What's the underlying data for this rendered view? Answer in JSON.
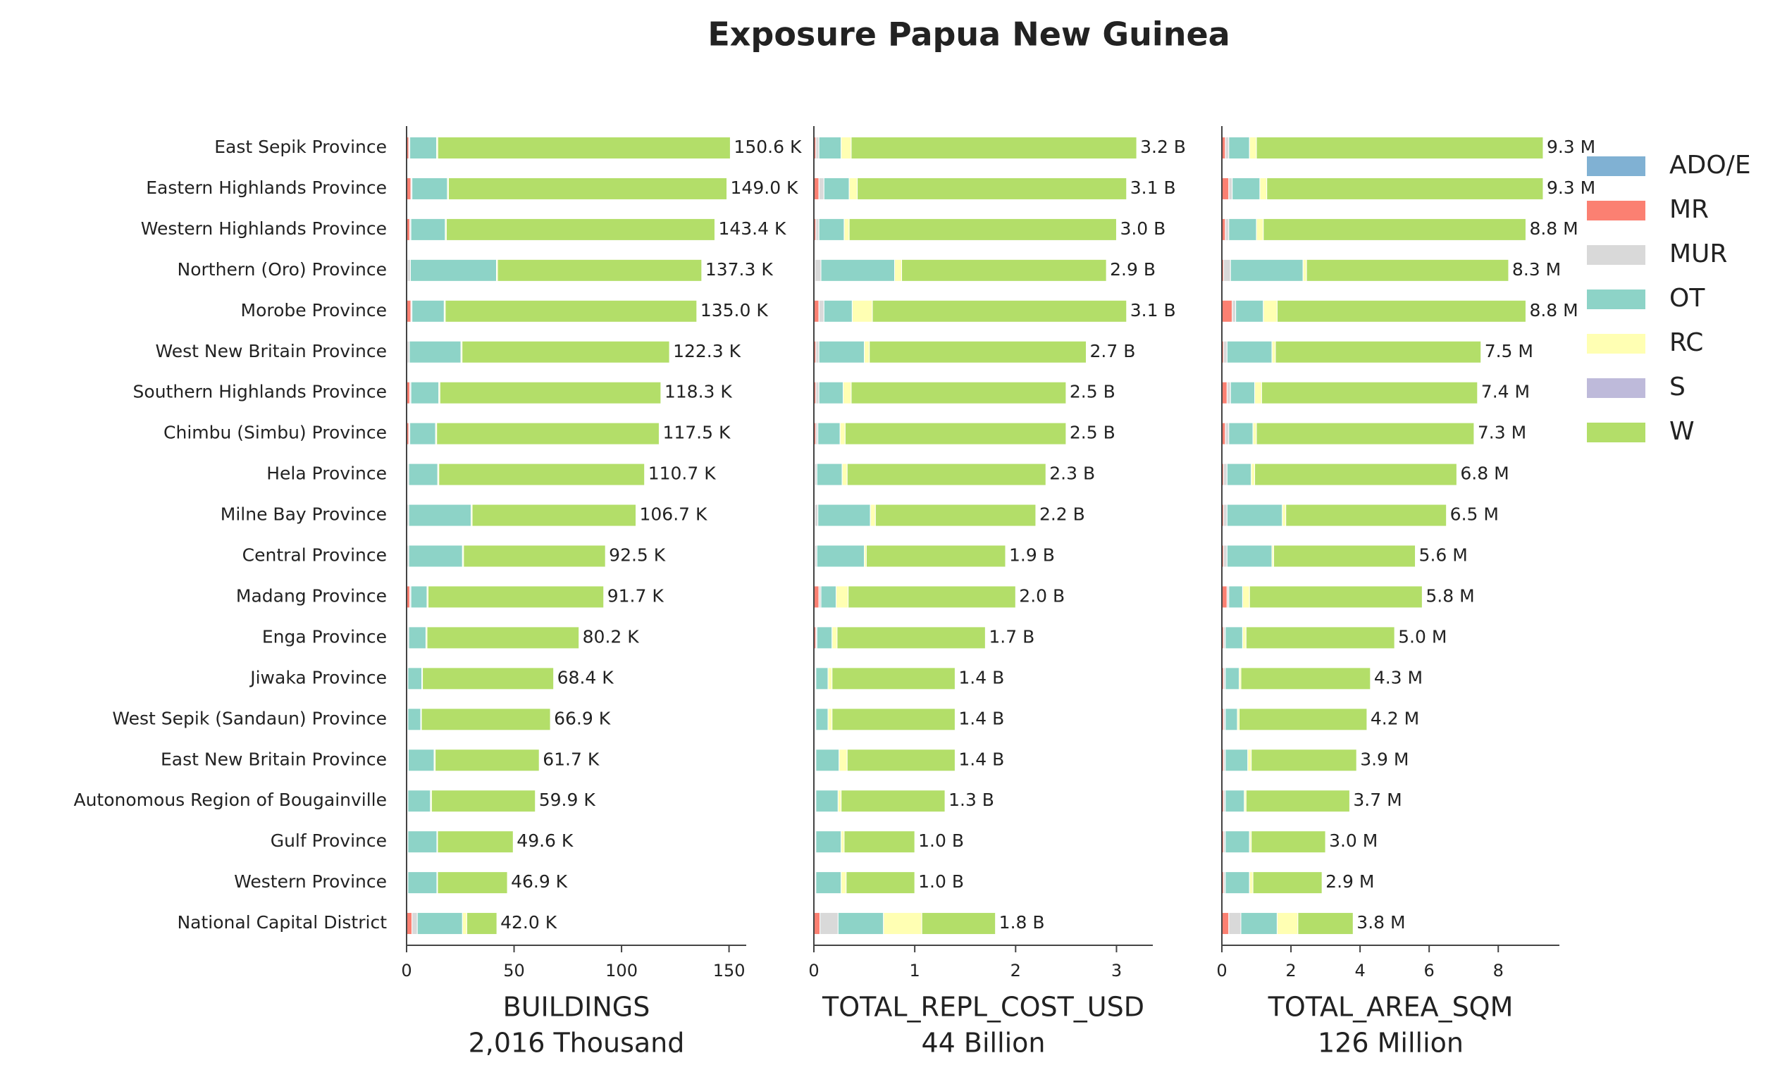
{
  "title": "Exposure Papua New Guinea",
  "chart_data": [
    {
      "type": "bar",
      "categories": [
        "East Sepik Province",
        "Eastern Highlands Province",
        "Western Highlands Province",
        "Northern (Oro) Province",
        "Morobe Province",
        "West New Britain Province",
        "Southern Highlands Province",
        "Chimbu (Simbu) Province",
        "Hela Province",
        "Milne Bay Province",
        "Central Province",
        "Madang Province",
        "Enga Province",
        "Jiwaka Province",
        "West Sepik (Sandaun) Province",
        "East New Britain Province",
        "Autonomous Region of Bougainville",
        "Gulf Province",
        "Western Province",
        "National Capital District"
      ],
      "series": [
        {
          "name": "ADO/E",
          "color": "#80b1d3",
          "values": [
            0,
            0,
            0,
            0,
            0,
            0,
            0,
            0,
            0,
            0,
            0,
            0,
            0,
            0,
            0,
            0,
            0,
            0,
            0,
            0
          ]
        },
        {
          "name": "MR",
          "color": "#fb8072",
          "values": [
            1.0,
            2.0,
            1.5,
            0.3,
            2.0,
            0.3,
            1.5,
            1.0,
            0.5,
            0.3,
            0.3,
            1.5,
            0.5,
            0.3,
            0.3,
            0.3,
            0.3,
            0.3,
            0.3,
            2.5
          ]
        },
        {
          "name": "MUR",
          "color": "#d9d9d9",
          "values": [
            0.5,
            0.5,
            0.5,
            1.5,
            0.5,
            1.0,
            0.5,
            0.5,
            0.5,
            0.7,
            0.7,
            0.5,
            0.5,
            0.3,
            0.3,
            0.5,
            0.3,
            0.3,
            0.3,
            2.5
          ]
        },
        {
          "name": "OT",
          "color": "#8dd3c7",
          "values": [
            12.5,
            16.5,
            16.0,
            40.0,
            15.0,
            24.0,
            13.0,
            12.0,
            13.5,
            29.0,
            25.0,
            7.5,
            8.0,
            6.5,
            6.0,
            12.0,
            10.5,
            13.5,
            13.5,
            21.0
          ]
        },
        {
          "name": "RC",
          "color": "#ffffb3",
          "values": [
            0.5,
            0.5,
            0.5,
            0.5,
            0.5,
            0.5,
            0.5,
            0.5,
            0.5,
            0.5,
            0.5,
            0.5,
            0.5,
            0.3,
            0.3,
            0.5,
            0.5,
            0.3,
            0.3,
            2.0
          ]
        },
        {
          "name": "S",
          "color": "#bebada",
          "values": [
            0,
            0,
            0,
            0,
            0,
            0,
            0,
            0,
            0,
            0,
            0,
            0,
            0,
            0,
            0,
            0,
            0,
            0,
            0,
            0
          ]
        },
        {
          "name": "W",
          "color": "#b3de69",
          "values": [
            136.1,
            129.5,
            124.9,
            95.0,
            117.0,
            96.5,
            102.8,
            103.5,
            95.7,
            76.2,
            66.0,
            81.7,
            70.7,
            61.0,
            60.0,
            48.4,
            48.3,
            35.2,
            32.5,
            14.0
          ]
        }
      ],
      "totals": [
        150.6,
        149.0,
        143.4,
        137.3,
        135.0,
        122.3,
        118.3,
        117.5,
        110.7,
        106.7,
        92.5,
        91.7,
        80.2,
        68.4,
        66.9,
        61.7,
        59.9,
        49.6,
        46.9,
        42.0
      ],
      "total_labels": [
        "150.6 K",
        "149.0 K",
        "143.4 K",
        "137.3 K",
        "135.0 K",
        "122.3 K",
        "118.3 K",
        "117.5 K",
        "110.7 K",
        "106.7 K",
        "92.5 K",
        "91.7 K",
        "80.2 K",
        "68.4 K",
        "66.9 K",
        "61.7 K",
        "59.9 K",
        "49.6 K",
        "46.9 K",
        "42.0 K"
      ],
      "xlim": [
        0,
        158
      ],
      "xticks": [
        0,
        50,
        100,
        150
      ],
      "xlabel": "BUILDINGS",
      "xlabel_sub": "2,016 Thousand"
    },
    {
      "type": "bar",
      "series": [
        {
          "values": [
            0,
            0,
            0,
            0,
            0,
            0,
            0,
            0,
            0,
            0,
            0,
            0,
            0,
            0,
            0,
            0,
            0,
            0,
            0,
            0
          ]
        },
        {
          "values": [
            0.02,
            0.05,
            0.02,
            0.01,
            0.05,
            0.02,
            0.02,
            0.02,
            0.01,
            0.01,
            0.01,
            0.05,
            0.02,
            0.01,
            0.01,
            0.01,
            0.01,
            0.01,
            0.01,
            0.06
          ]
        },
        {
          "values": [
            0.03,
            0.05,
            0.03,
            0.06,
            0.05,
            0.03,
            0.03,
            0.02,
            0.02,
            0.03,
            0.02,
            0.02,
            0.01,
            0.01,
            0.01,
            0.01,
            0.01,
            0.01,
            0.01,
            0.18
          ]
        },
        {
          "values": [
            0.22,
            0.25,
            0.25,
            0.73,
            0.28,
            0.45,
            0.24,
            0.22,
            0.25,
            0.52,
            0.47,
            0.15,
            0.15,
            0.12,
            0.12,
            0.23,
            0.22,
            0.25,
            0.25,
            0.45
          ]
        },
        {
          "values": [
            0.1,
            0.08,
            0.05,
            0.07,
            0.2,
            0.05,
            0.08,
            0.05,
            0.05,
            0.05,
            0.02,
            0.12,
            0.05,
            0.04,
            0.04,
            0.08,
            0.03,
            0.03,
            0.05,
            0.38
          ]
        },
        {
          "values": [
            0,
            0,
            0,
            0,
            0,
            0,
            0,
            0,
            0,
            0,
            0,
            0,
            0,
            0,
            0,
            0,
            0,
            0,
            0,
            0
          ]
        },
        {
          "values": [
            2.83,
            2.67,
            2.65,
            2.03,
            2.52,
            2.15,
            2.13,
            2.19,
            1.97,
            1.59,
            1.38,
            1.66,
            1.47,
            1.22,
            1.22,
            1.07,
            1.03,
            0.7,
            0.68,
            0.73
          ]
        }
      ],
      "totals": [
        3.2,
        3.1,
        3.0,
        2.9,
        3.1,
        2.7,
        2.5,
        2.5,
        2.3,
        2.2,
        1.9,
        2.0,
        1.7,
        1.4,
        1.4,
        1.4,
        1.3,
        1.0,
        1.0,
        1.8
      ],
      "total_labels": [
        "3.2 B",
        "3.1 B",
        "3.0 B",
        "2.9 B",
        "3.1 B",
        "2.7 B",
        "2.5 B",
        "2.5 B",
        "2.3 B",
        "2.2 B",
        "1.9 B",
        "2.0 B",
        "1.7 B",
        "1.4 B",
        "1.4 B",
        "1.4 B",
        "1.3 B",
        "1.0 B",
        "1.0 B",
        "1.8 B"
      ],
      "xlim": [
        0,
        3.36
      ],
      "xticks": [
        0,
        1,
        2,
        3
      ],
      "xlabel": "TOTAL_REPL_COST_USD",
      "xlabel_sub": "44 Billion"
    },
    {
      "type": "bar",
      "series": [
        {
          "values": [
            0,
            0,
            0,
            0,
            0,
            0,
            0,
            0,
            0,
            0,
            0,
            0,
            0,
            0,
            0,
            0,
            0,
            0,
            0,
            0
          ]
        },
        {
          "values": [
            0.1,
            0.2,
            0.1,
            0.05,
            0.3,
            0.05,
            0.15,
            0.1,
            0.05,
            0.05,
            0.05,
            0.15,
            0.05,
            0.05,
            0.05,
            0.05,
            0.05,
            0.05,
            0.05,
            0.2
          ]
        },
        {
          "values": [
            0.1,
            0.1,
            0.1,
            0.2,
            0.1,
            0.1,
            0.1,
            0.1,
            0.1,
            0.1,
            0.1,
            0.05,
            0.05,
            0.05,
            0.05,
            0.05,
            0.05,
            0.05,
            0.05,
            0.35
          ]
        },
        {
          "values": [
            0.6,
            0.8,
            0.8,
            2.1,
            0.8,
            1.3,
            0.7,
            0.7,
            0.7,
            1.6,
            1.3,
            0.4,
            0.5,
            0.4,
            0.35,
            0.65,
            0.55,
            0.7,
            0.7,
            1.05
          ]
        },
        {
          "values": [
            0.2,
            0.2,
            0.2,
            0.1,
            0.4,
            0.1,
            0.2,
            0.1,
            0.1,
            0.1,
            0.05,
            0.2,
            0.1,
            0.05,
            0.05,
            0.1,
            0.05,
            0.05,
            0.1,
            0.6
          ]
        },
        {
          "values": [
            0,
            0,
            0,
            0,
            0,
            0,
            0,
            0,
            0,
            0,
            0,
            0,
            0,
            0,
            0,
            0,
            0,
            0,
            0,
            0
          ]
        },
        {
          "values": [
            8.3,
            8.0,
            7.6,
            5.85,
            7.2,
            5.95,
            6.25,
            6.3,
            5.85,
            4.65,
            4.1,
            5.0,
            4.3,
            3.75,
            3.7,
            3.05,
            3.0,
            2.15,
            2.0,
            1.6
          ]
        }
      ],
      "totals": [
        9.3,
        9.3,
        8.8,
        8.3,
        8.8,
        7.5,
        7.4,
        7.3,
        6.8,
        6.5,
        5.6,
        5.8,
        5.0,
        4.3,
        4.2,
        3.9,
        3.7,
        3.0,
        2.9,
        3.8
      ],
      "total_labels": [
        "9.3 M",
        "9.3 M",
        "8.8 M",
        "8.3 M",
        "8.8 M",
        "7.5 M",
        "7.4 M",
        "7.3 M",
        "6.8 M",
        "6.5 M",
        "5.6 M",
        "5.8 M",
        "5.0 M",
        "4.3 M",
        "4.2 M",
        "3.9 M",
        "3.7 M",
        "3.0 M",
        "2.9 M",
        "3.8 M"
      ],
      "xlim": [
        0,
        9.77
      ],
      "xticks": [
        0,
        2,
        4,
        6,
        8
      ],
      "xlabel": "TOTAL_AREA_SQM",
      "xlabel_sub": "126 Million"
    }
  ]
}
